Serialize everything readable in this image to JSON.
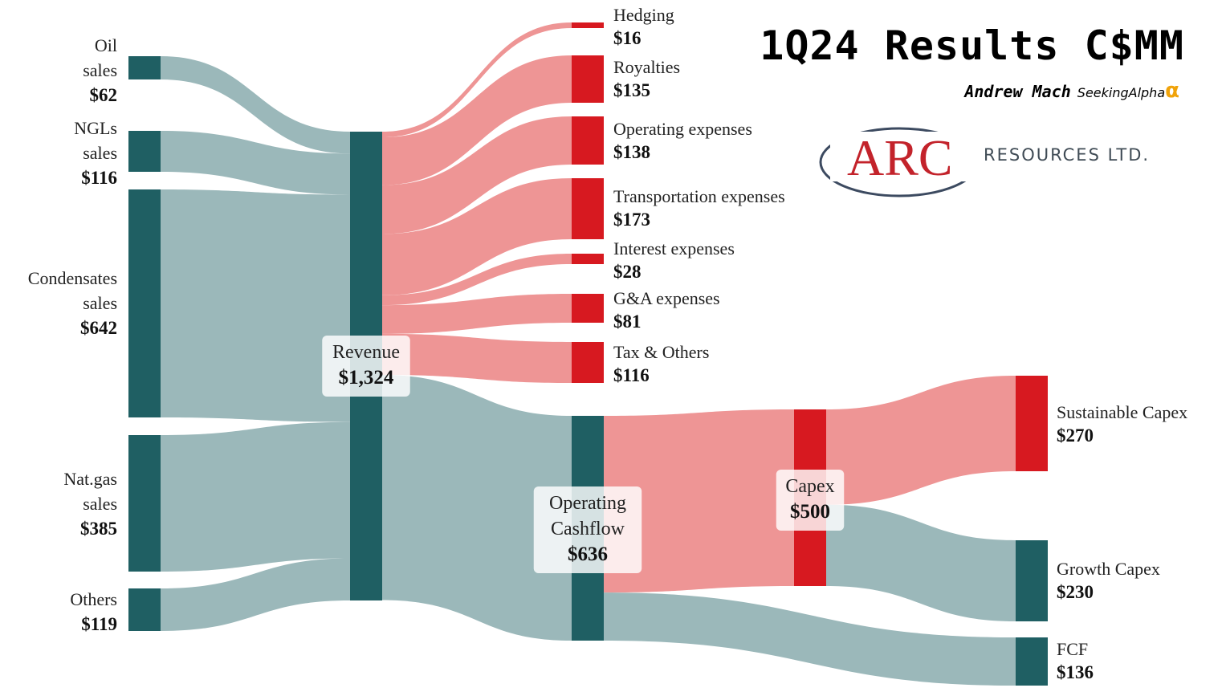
{
  "header": {
    "title": "1Q24 Results C$MM",
    "author": "Andrew Mach",
    "site": "SeekingAlpha",
    "site_mark": "α"
  },
  "logo": {
    "wordmark": "ARC",
    "subtitle": "RESOURCES LTD.",
    "color": "#c3232b"
  },
  "colors": {
    "node_dark": "#1f5f63",
    "node_red": "#d71920",
    "link_teal": "#9bb8ba",
    "link_red": "#ee9595"
  },
  "chart_data": {
    "type": "sankey",
    "units": "C$MM",
    "nodes": [
      {
        "id": "oil",
        "label": [
          "Oil",
          "sales"
        ],
        "value_label": "$62",
        "value": 62
      },
      {
        "id": "ngl",
        "label": [
          "NGLs",
          "sales"
        ],
        "value_label": "$116",
        "value": 116
      },
      {
        "id": "cond",
        "label": [
          "Condensates",
          "sales"
        ],
        "value_label": "$642",
        "value": 642
      },
      {
        "id": "gas",
        "label": [
          "Nat.gas",
          "sales"
        ],
        "value_label": "$385",
        "value": 385
      },
      {
        "id": "others",
        "label": [
          "Others"
        ],
        "value_label": "$119",
        "value": 119
      },
      {
        "id": "rev",
        "label": [
          "Revenue"
        ],
        "value_label": "$1,324",
        "value": 1324
      },
      {
        "id": "hedge",
        "label": [
          "Hedging"
        ],
        "value_label": "$16",
        "value": 16
      },
      {
        "id": "roy",
        "label": [
          "Royalties"
        ],
        "value_label": "$135",
        "value": 135
      },
      {
        "id": "opex",
        "label": [
          "Operating expenses"
        ],
        "value_label": "$138",
        "value": 138
      },
      {
        "id": "trans",
        "label": [
          "Transportation expenses"
        ],
        "value_label": "$173",
        "value": 173
      },
      {
        "id": "int",
        "label": [
          "Interest expenses"
        ],
        "value_label": "$28",
        "value": 28
      },
      {
        "id": "ga",
        "label": [
          "G&A expenses"
        ],
        "value_label": "$81",
        "value": 81
      },
      {
        "id": "tax",
        "label": [
          "Tax & Others"
        ],
        "value_label": "$116",
        "value": 116
      },
      {
        "id": "ocf",
        "label": [
          "Operating",
          "Cashflow"
        ],
        "value_label": "$636",
        "value": 636
      },
      {
        "id": "capex",
        "label": [
          "Capex"
        ],
        "value_label": "$500",
        "value": 500
      },
      {
        "id": "fcf",
        "label": [
          "FCF"
        ],
        "value_label": "$136",
        "value": 136
      },
      {
        "id": "sust",
        "label": [
          "Sustainable Capex"
        ],
        "value_label": "$270",
        "value": 270
      },
      {
        "id": "growth",
        "label": [
          "Growth Capex"
        ],
        "value_label": "$230",
        "value": 230
      }
    ],
    "links": [
      {
        "source": "oil",
        "target": "rev",
        "value": 62
      },
      {
        "source": "ngl",
        "target": "rev",
        "value": 116
      },
      {
        "source": "cond",
        "target": "rev",
        "value": 642
      },
      {
        "source": "gas",
        "target": "rev",
        "value": 385
      },
      {
        "source": "others",
        "target": "rev",
        "value": 119
      },
      {
        "source": "rev",
        "target": "hedge",
        "value": 16
      },
      {
        "source": "rev",
        "target": "roy",
        "value": 135
      },
      {
        "source": "rev",
        "target": "opex",
        "value": 138
      },
      {
        "source": "rev",
        "target": "trans",
        "value": 173
      },
      {
        "source": "rev",
        "target": "int",
        "value": 28
      },
      {
        "source": "rev",
        "target": "ga",
        "value": 81
      },
      {
        "source": "rev",
        "target": "tax",
        "value": 116
      },
      {
        "source": "rev",
        "target": "ocf",
        "value": 636
      },
      {
        "source": "ocf",
        "target": "capex",
        "value": 500
      },
      {
        "source": "ocf",
        "target": "fcf",
        "value": 136
      },
      {
        "source": "capex",
        "target": "sust",
        "value": 270
      },
      {
        "source": "capex",
        "target": "growth",
        "value": 230
      }
    ]
  }
}
